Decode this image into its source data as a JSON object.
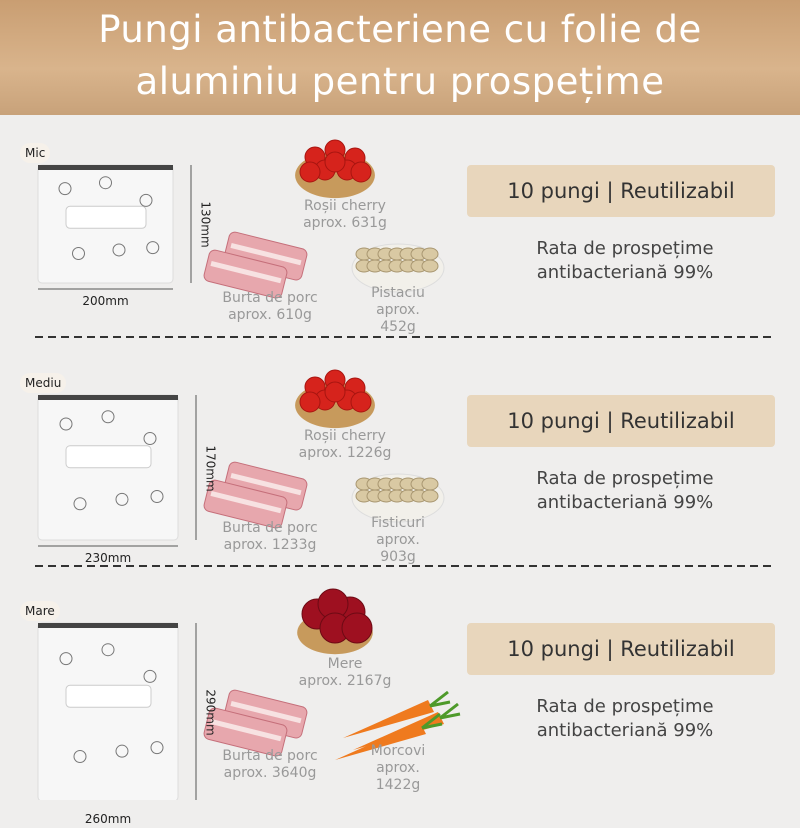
{
  "header": {
    "title": "Pungi antibacteriene cu folie de aluminiu pentru prospețime"
  },
  "sections": [
    {
      "size": "Mic",
      "height": "130mm",
      "width": "200mm",
      "foods": [
        {
          "name": "Roșii cherry",
          "weight": "aprox. 631g"
        },
        {
          "name": "Burta de porc",
          "weight": "aprox. 610g"
        },
        {
          "name": "Pistaciu",
          "weight": "aprox. 452g"
        }
      ],
      "badge": "10 pungi | Reutilizabil",
      "description": "Rata de prospețime antibacteriană 99%"
    },
    {
      "size": "Mediu",
      "height": "170mm",
      "width": "230mm",
      "foods": [
        {
          "name": "Roșii cherry",
          "weight": "aprox. 1226g"
        },
        {
          "name": "Burta de porc",
          "weight": "aprox. 1233g"
        },
        {
          "name": "Fisticuri",
          "weight": "aprox. 903g"
        }
      ],
      "badge": "10 pungi | Reutilizabil",
      "description": "Rata de prospețime antibacteriană 99%"
    },
    {
      "size": "Mare",
      "height": "290mm",
      "width": "260mm",
      "foods": [
        {
          "name": "Mere",
          "weight": "aprox. 2167g"
        },
        {
          "name": "Burta de porc",
          "weight": "aprox. 3640g"
        },
        {
          "name": "Morcovi",
          "weight": "aprox. 1422g"
        }
      ],
      "badge": "10 pungi | Reutilizabil",
      "description": "Rata de prospețime antibacteriană 99%"
    }
  ]
}
